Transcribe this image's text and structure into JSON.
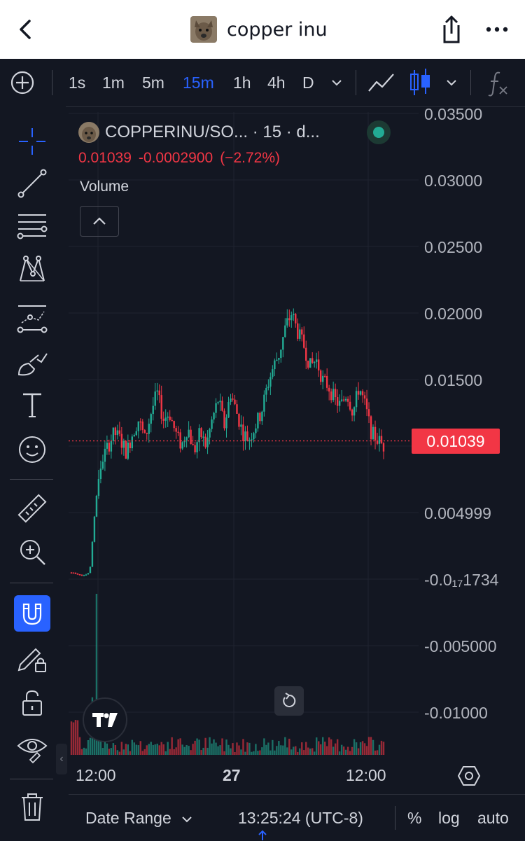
{
  "header": {
    "title": "copper inu",
    "icons": [
      "chevron-left-icon",
      "share-icon",
      "more-icon"
    ]
  },
  "toolbar": {
    "intervals": [
      "1s",
      "1m",
      "5m",
      "15m",
      "1h",
      "4h",
      "D"
    ],
    "active_interval": "15m",
    "icons": [
      "add-circle-icon",
      "chevron-down-icon",
      "line-chart-icon",
      "candles-icon",
      "chevron-down-icon",
      "function-icon"
    ]
  },
  "left_tools": [
    "crosshair-icon",
    "trend-line-icon",
    "fib-lines-icon",
    "pattern-icon",
    "prediction-icon",
    "brush-icon",
    "text-icon",
    "emoji-icon",
    "ruler-icon",
    "zoom-in-icon",
    "magnet-icon",
    "lock-draw-icon",
    "unlock-icon",
    "eye-icon",
    "trash-icon"
  ],
  "legend": {
    "symbol": "COPPERINU/SO... · 15 · d...",
    "price": "0.01039",
    "change": "-0.0002900",
    "change_pct": "(−2.72%)",
    "volume_label": "Volume"
  },
  "y_axis": {
    "labels": [
      "0.03500",
      "0.03000",
      "0.02500",
      "0.02000",
      "0.01500",
      "0.004999",
      "-0.0₁₇1734",
      "-0.005000",
      "-0.01000"
    ],
    "current_price": "0.01039"
  },
  "x_axis": {
    "labels": [
      "12:00",
      "27",
      "12:00"
    ]
  },
  "bottom_bar": {
    "date_range": "Date Range",
    "time": "13:25:24 (UTC-8)",
    "percent": "%",
    "log": "log",
    "auto": "auto"
  },
  "colors": {
    "bg": "#131722",
    "up": "#22ab94",
    "down": "#f23645",
    "accent": "#2962ff"
  },
  "chart_data": {
    "type": "candlestick",
    "symbol": "COPPERINU/SO...",
    "interval": "15",
    "last_price": 0.01039,
    "y_ticks": [
      0.035,
      0.03,
      0.025,
      0.02,
      0.015,
      0.004999,
      -0.005,
      -0.01
    ],
    "x_ticks": [
      "12:00",
      "27",
      "12:00"
    ],
    "close_path": [
      0.0005,
      0.0004,
      0.0003,
      0.0005,
      0.006,
      0.009,
      0.01,
      0.011,
      0.0105,
      0.0095,
      0.011,
      0.012,
      0.0105,
      0.0125,
      0.014,
      0.012,
      0.0125,
      0.011,
      0.01,
      0.0115,
      0.0095,
      0.011,
      0.01,
      0.012,
      0.0135,
      0.0115,
      0.014,
      0.0125,
      0.011,
      0.0105,
      0.0115,
      0.0125,
      0.0145,
      0.016,
      0.017,
      0.019,
      0.02,
      0.0185,
      0.0175,
      0.016,
      0.0165,
      0.015,
      0.0145,
      0.0135,
      0.013,
      0.014,
      0.0125,
      0.0145,
      0.013,
      0.011,
      0.0105,
      0.01
    ]
  }
}
